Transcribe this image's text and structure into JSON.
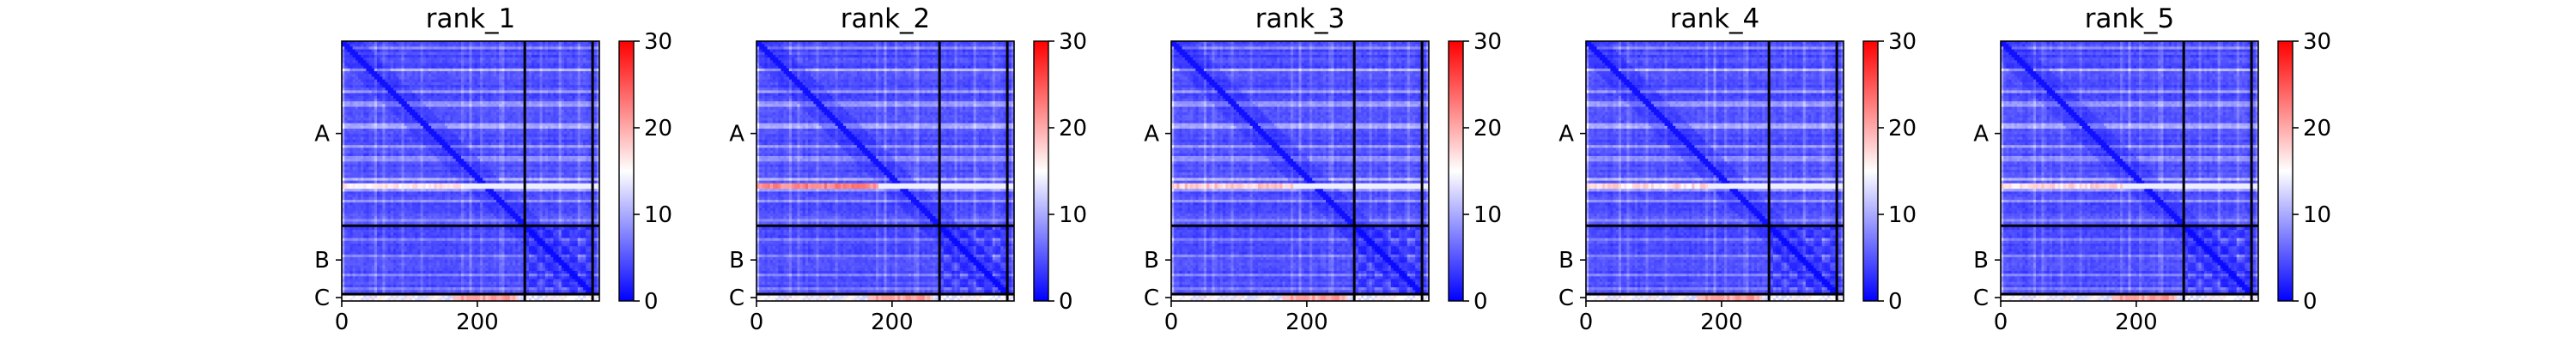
{
  "figure": {
    "panels": [
      {
        "title": "rank_1"
      },
      {
        "title": "rank_2"
      },
      {
        "title": "rank_3"
      },
      {
        "title": "rank_4"
      },
      {
        "title": "rank_5"
      }
    ]
  },
  "chart_data": {
    "type": "heatmap",
    "description_kind": "predicted aligned error matrices, one per model rank",
    "colormap": [
      "#0000ff",
      "#ffffff",
      "#ff0000"
    ],
    "color_scale": {
      "min": 0,
      "max": 30,
      "ticks": [
        "0",
        "10",
        "20",
        "30"
      ]
    },
    "x_ticks": [
      "0",
      "200"
    ],
    "x_range": [
      0,
      380
    ],
    "y_chain_labels": [
      "A",
      "B",
      "C"
    ],
    "chain_boundaries": [
      270,
      370
    ],
    "n_residues": 380,
    "panels": [
      {
        "title": "rank_1",
        "hot_row_max": 18
      },
      {
        "title": "rank_2",
        "hot_row_max": 24
      },
      {
        "title": "rank_3",
        "hot_row_max": 20
      },
      {
        "title": "rank_4",
        "hot_row_max": 19
      },
      {
        "title": "rank_5",
        "hot_row_max": 19
      }
    ]
  }
}
